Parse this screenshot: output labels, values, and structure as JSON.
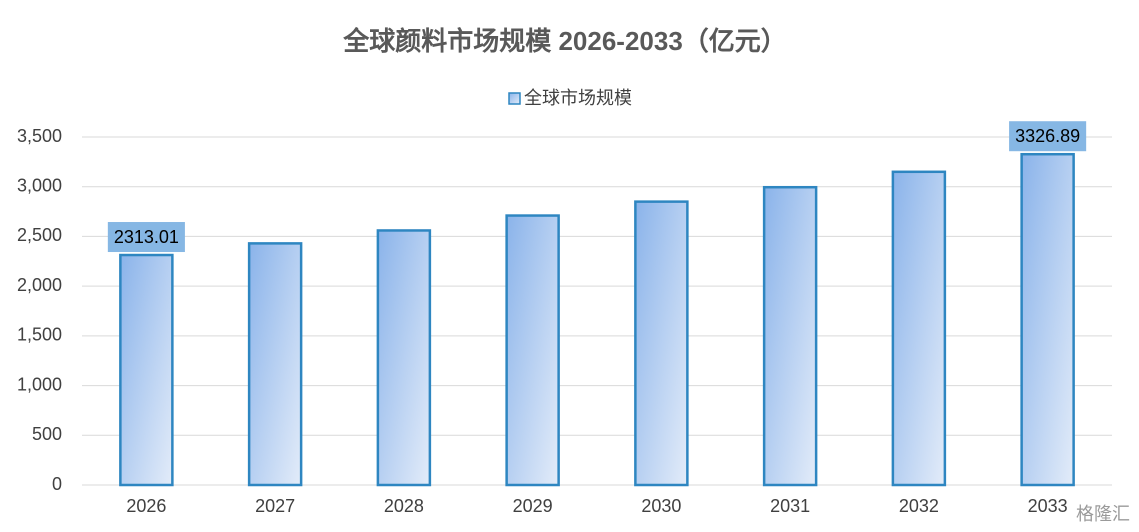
{
  "chart_data": {
    "type": "bar",
    "title": "全球颜料市场规模 2026-2033（亿元）",
    "categories": [
      "2026",
      "2027",
      "2028",
      "2029",
      "2030",
      "2031",
      "2032",
      "2033"
    ],
    "series": [
      {
        "name": "全球市场规模",
        "color": "#2e86c1",
        "values": [
          2313.01,
          2430,
          2560,
          2710,
          2850,
          2995,
          3150,
          3326.89
        ],
        "value_labels": [
          "2313.01",
          null,
          null,
          null,
          null,
          null,
          null,
          "3326.89"
        ]
      }
    ],
    "ylim": [
      0,
      3500
    ],
    "yticks": [
      0,
      {
        "value": 500,
        "label": "500"
      },
      {
        "value": 1000,
        "label": "1,000"
      },
      {
        "value": 1500,
        "label": "1,500"
      },
      {
        "value": 2000,
        "label": "2,000"
      },
      {
        "value": 2500,
        "label": "2,500"
      },
      {
        "value": 3000,
        "label": "3,000"
      },
      {
        "value": 3500,
        "label": "3,500"
      }
    ],
    "grid": true,
    "legend": "top",
    "watermark": "格隆汇"
  }
}
